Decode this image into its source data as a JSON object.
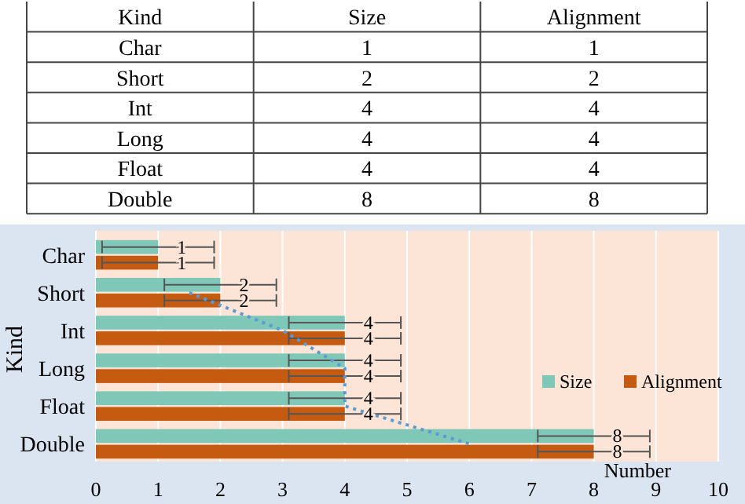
{
  "chart_data": {
    "type": "bar",
    "orientation": "horizontal",
    "ylabel": "Kind",
    "xlabel": "Number",
    "categories": [
      "Char",
      "Short",
      "Int",
      "Long",
      "Float",
      "Double"
    ],
    "series": [
      {
        "name": "Size",
        "color": "#7fc8b8",
        "values": [
          1,
          2,
          4,
          4,
          4,
          8
        ],
        "errors": [
          0.9,
          0.9,
          0.9,
          0.9,
          0.9,
          0.9
        ],
        "value_labels": [
          "1",
          "2",
          "4",
          "4",
          "4",
          "8"
        ]
      },
      {
        "name": "Alignment",
        "color": "#c55a11",
        "values": [
          1,
          2,
          4,
          4,
          4,
          8
        ],
        "errors": [
          0.9,
          0.9,
          0.9,
          0.9,
          0.9,
          0.9
        ],
        "value_labels": [
          "1",
          "2",
          "4",
          "4",
          "4",
          "8"
        ]
      },
      {
        "type": "line",
        "color": "#5b9bd5",
        "line_style": "dotted",
        "values": [
          null,
          1.5,
          3,
          4,
          4,
          6
        ]
      }
    ],
    "xlim": [
      0,
      10
    ],
    "xticks": [
      0,
      1,
      2,
      3,
      4,
      5,
      6,
      7,
      8,
      9,
      10
    ],
    "grid": "x",
    "legend": "right"
  }
}
